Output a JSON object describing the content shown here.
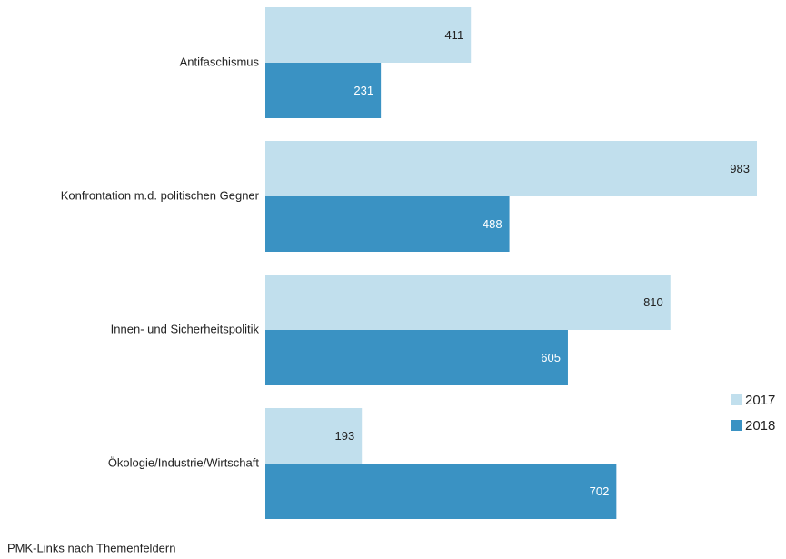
{
  "chart_data": {
    "type": "barh",
    "caption": "PMK-Links nach Themenfeldern",
    "categories": [
      "Antifaschismus",
      "Konfrontation m.d. politischen Gegner",
      "Innen- und Sicherheitspolitik",
      "Ökologie/Industrie/Wirtschaft"
    ],
    "series": [
      {
        "name": "2017",
        "color": "#c1dfed",
        "values": [
          411,
          983,
          810,
          193
        ]
      },
      {
        "name": "2018",
        "color": "#3a92c3",
        "values": [
          231,
          488,
          605,
          702
        ]
      }
    ]
  }
}
